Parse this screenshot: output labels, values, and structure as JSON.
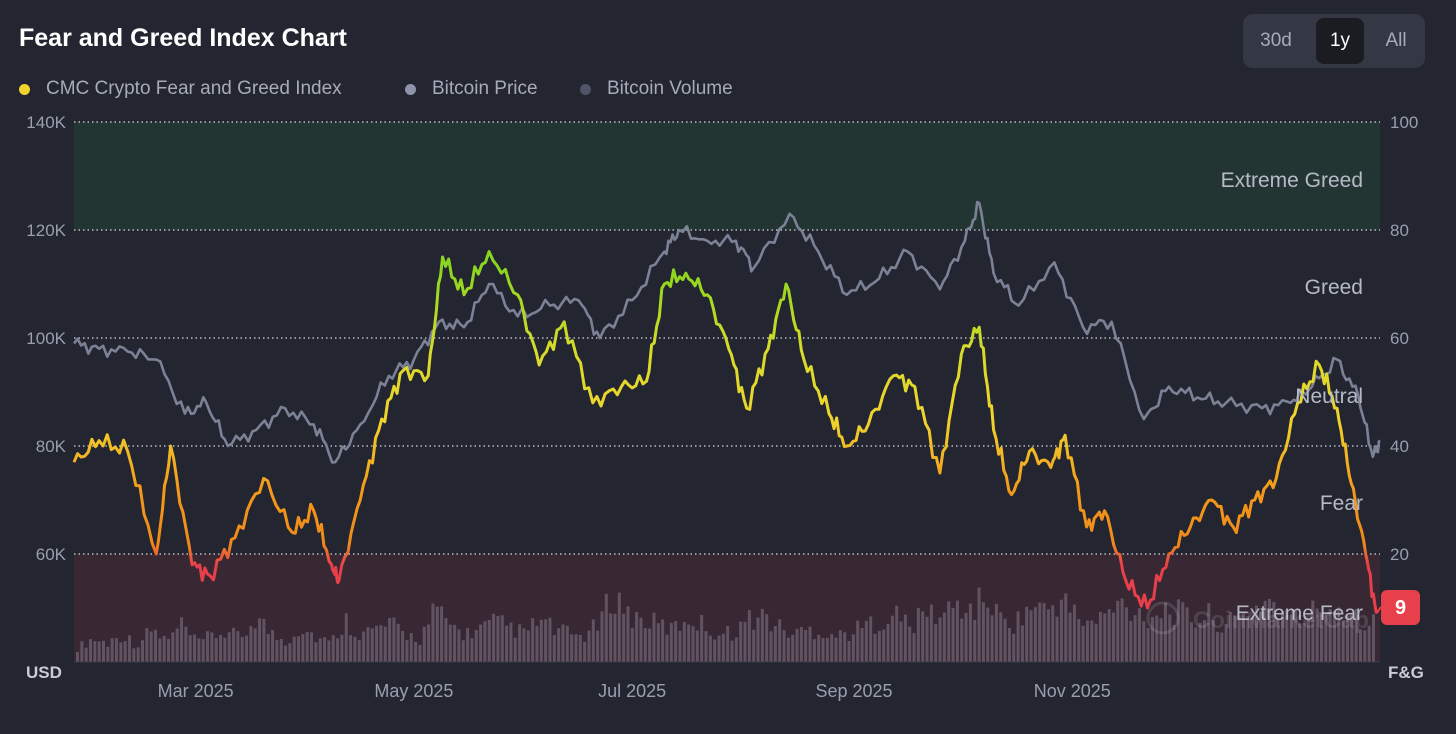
{
  "header": {
    "title": "Fear and Greed Index Chart"
  },
  "range_buttons": [
    {
      "label": "30d",
      "active": false
    },
    {
      "label": "1y",
      "active": true
    },
    {
      "label": "All",
      "active": false
    }
  ],
  "legend": [
    {
      "label": "CMC Crypto Fear and Greed Index",
      "color": "#f0d42d"
    },
    {
      "label": "Bitcoin Price",
      "color": "#8e94ab"
    },
    {
      "label": "Bitcoin Volume",
      "color": "#4f5566"
    }
  ],
  "watermark": "CoinMarketCap",
  "current_badge": {
    "value": "9",
    "color": "#e8404a"
  },
  "chart_data": {
    "type": "line",
    "title": "Fear and Greed Index Chart",
    "left_axis": {
      "label": "USD",
      "ticks": [
        "140K",
        "120K",
        "100K",
        "80K",
        "60K"
      ],
      "ylim": [
        40000,
        140000
      ]
    },
    "right_axis": {
      "label": "F&G",
      "ticks": [
        "100",
        "80",
        "60",
        "40",
        "20"
      ],
      "ylim": [
        0,
        100
      ]
    },
    "x_ticks": [
      "Mar 2025",
      "May 2025",
      "Jul 2025",
      "Sep 2025",
      "Nov 2025"
    ],
    "zones": [
      {
        "label": "Extreme Greed",
        "from": 80,
        "to": 100,
        "color": "#233533"
      },
      {
        "label": "Greed",
        "from": 60,
        "to": 80,
        "color": null
      },
      {
        "label": "Neutral",
        "from": 40,
        "to": 60,
        "color": null
      },
      {
        "label": "Fear",
        "from": 20,
        "to": 40,
        "color": null
      },
      {
        "label": "Extreme Fear",
        "from": 0,
        "to": 20,
        "color": "#382834"
      }
    ],
    "x_range": [
      "2025-01-26",
      "2026-01-26"
    ],
    "series": [
      {
        "name": "CMC Crypto Fear and Greed Index",
        "axis": "right",
        "points": [
          [
            "2025-01-26",
            37
          ],
          [
            "2025-02-02",
            41
          ],
          [
            "2025-02-10",
            39
          ],
          [
            "2025-02-18",
            20
          ],
          [
            "2025-02-22",
            40
          ],
          [
            "2025-02-28",
            18
          ],
          [
            "2025-03-05",
            16
          ],
          [
            "2025-03-12",
            23
          ],
          [
            "2025-03-20",
            34
          ],
          [
            "2025-03-28",
            24
          ],
          [
            "2025-04-03",
            28
          ],
          [
            "2025-04-08",
            18
          ],
          [
            "2025-04-10",
            15
          ],
          [
            "2025-04-16",
            30
          ],
          [
            "2025-04-22",
            45
          ],
          [
            "2025-04-28",
            54
          ],
          [
            "2025-05-05",
            53
          ],
          [
            "2025-05-09",
            75
          ],
          [
            "2025-05-15",
            68
          ],
          [
            "2025-05-22",
            76
          ],
          [
            "2025-05-30",
            68
          ],
          [
            "2025-06-05",
            55
          ],
          [
            "2025-06-12",
            63
          ],
          [
            "2025-06-20",
            48
          ],
          [
            "2025-06-28",
            51
          ],
          [
            "2025-07-05",
            52
          ],
          [
            "2025-07-10",
            70
          ],
          [
            "2025-07-16",
            72
          ],
          [
            "2025-07-22",
            68
          ],
          [
            "2025-07-28",
            58
          ],
          [
            "2025-08-02",
            47
          ],
          [
            "2025-08-08",
            58
          ],
          [
            "2025-08-13",
            70
          ],
          [
            "2025-08-18",
            56
          ],
          [
            "2025-08-25",
            46
          ],
          [
            "2025-08-30",
            40
          ],
          [
            "2025-09-05",
            44
          ],
          [
            "2025-09-12",
            53
          ],
          [
            "2025-09-18",
            51
          ],
          [
            "2025-09-25",
            35
          ],
          [
            "2025-10-01",
            57
          ],
          [
            "2025-10-06",
            62
          ],
          [
            "2025-10-10",
            43
          ],
          [
            "2025-10-15",
            31
          ],
          [
            "2025-10-20",
            39
          ],
          [
            "2025-10-26",
            36
          ],
          [
            "2025-10-30",
            42
          ],
          [
            "2025-11-05",
            25
          ],
          [
            "2025-11-10",
            28
          ],
          [
            "2025-11-16",
            15
          ],
          [
            "2025-11-22",
            10
          ],
          [
            "2025-11-28",
            20
          ],
          [
            "2025-12-04",
            25
          ],
          [
            "2025-12-10",
            30
          ],
          [
            "2025-12-16",
            25
          ],
          [
            "2025-12-22",
            30
          ],
          [
            "2025-12-28",
            34
          ],
          [
            "2026-01-03",
            48
          ],
          [
            "2026-01-09",
            55
          ],
          [
            "2026-01-14",
            47
          ],
          [
            "2026-01-18",
            33
          ],
          [
            "2026-01-22",
            20
          ],
          [
            "2026-01-25",
            9
          ]
        ]
      },
      {
        "name": "Bitcoin Price",
        "axis": "left",
        "points": [
          [
            "2025-01-26",
            99000
          ],
          [
            "2025-02-02",
            98000
          ],
          [
            "2025-02-10",
            97500
          ],
          [
            "2025-02-18",
            96000
          ],
          [
            "2025-02-26",
            86000
          ],
          [
            "2025-03-04",
            88000
          ],
          [
            "2025-03-10",
            80000
          ],
          [
            "2025-03-18",
            83000
          ],
          [
            "2025-03-26",
            87000
          ],
          [
            "2025-04-03",
            84000
          ],
          [
            "2025-04-09",
            77000
          ],
          [
            "2025-04-16",
            84000
          ],
          [
            "2025-04-24",
            93000
          ],
          [
            "2025-05-01",
            96000
          ],
          [
            "2025-05-08",
            103000
          ],
          [
            "2025-05-15",
            102000
          ],
          [
            "2025-05-22",
            110000
          ],
          [
            "2025-05-30",
            104000
          ],
          [
            "2025-06-08",
            106000
          ],
          [
            "2025-06-16",
            107000
          ],
          [
            "2025-06-22",
            100000
          ],
          [
            "2025-07-01",
            107000
          ],
          [
            "2025-07-10",
            116000
          ],
          [
            "2025-07-14",
            120000
          ],
          [
            "2025-07-22",
            118000
          ],
          [
            "2025-07-30",
            118000
          ],
          [
            "2025-08-04",
            113000
          ],
          [
            "2025-08-14",
            123000
          ],
          [
            "2025-08-22",
            116000
          ],
          [
            "2025-08-30",
            108000
          ],
          [
            "2025-09-08",
            111000
          ],
          [
            "2025-09-16",
            116000
          ],
          [
            "2025-09-25",
            109000
          ],
          [
            "2025-10-02",
            118000
          ],
          [
            "2025-10-06",
            125000
          ],
          [
            "2025-10-10",
            112000
          ],
          [
            "2025-10-17",
            106000
          ],
          [
            "2025-10-27",
            114000
          ],
          [
            "2025-11-04",
            102000
          ],
          [
            "2025-11-12",
            103000
          ],
          [
            "2025-11-21",
            85000
          ],
          [
            "2025-11-28",
            91000
          ],
          [
            "2025-12-06",
            89000
          ],
          [
            "2025-12-14",
            88000
          ],
          [
            "2025-12-24",
            87000
          ],
          [
            "2026-01-01",
            88000
          ],
          [
            "2026-01-07",
            91000
          ],
          [
            "2026-01-14",
            96000
          ],
          [
            "2026-01-20",
            89000
          ],
          [
            "2026-01-24",
            78000
          ],
          [
            "2026-01-26",
            81000
          ]
        ]
      },
      {
        "name": "Bitcoin Volume",
        "axis": "volume",
        "relative_levels": [
          0.15,
          0.25,
          0.2,
          0.3,
          0.18,
          0.35,
          0.22,
          0.4,
          0.2,
          0.28,
          0.32,
          0.25,
          0.5,
          0.3,
          0.22,
          0.38,
          0.27,
          0.2,
          0.45,
          0.3,
          0.35,
          0.4,
          0.3,
          0.25,
          0.55,
          0.4,
          0.3,
          0.35,
          0.42,
          0.38,
          0.3,
          0.45,
          0.35,
          0.3,
          0.28,
          0.4,
          0.75,
          0.5,
          0.45,
          0.4,
          0.35,
          0.48,
          0.4,
          0.3,
          0.32,
          0.45,
          0.5,
          0.38,
          0.3,
          0.35,
          0.33,
          0.28,
          0.32,
          0.4,
          0.45,
          0.5,
          0.38,
          0.55,
          0.48,
          0.62,
          0.55,
          0.7,
          0.45,
          0.42,
          0.6,
          0.55,
          0.68,
          0.5,
          0.4,
          0.5,
          0.62,
          0.55,
          0.48,
          0.58,
          0.52,
          0.45,
          0.5,
          0.4,
          0.45,
          0.58,
          0.68,
          0.5,
          0.45,
          0.55,
          0.62,
          0.58,
          0.5,
          0.42
        ]
      }
    ],
    "grid": "horizontal-dotted",
    "legend_position": "top-left"
  }
}
